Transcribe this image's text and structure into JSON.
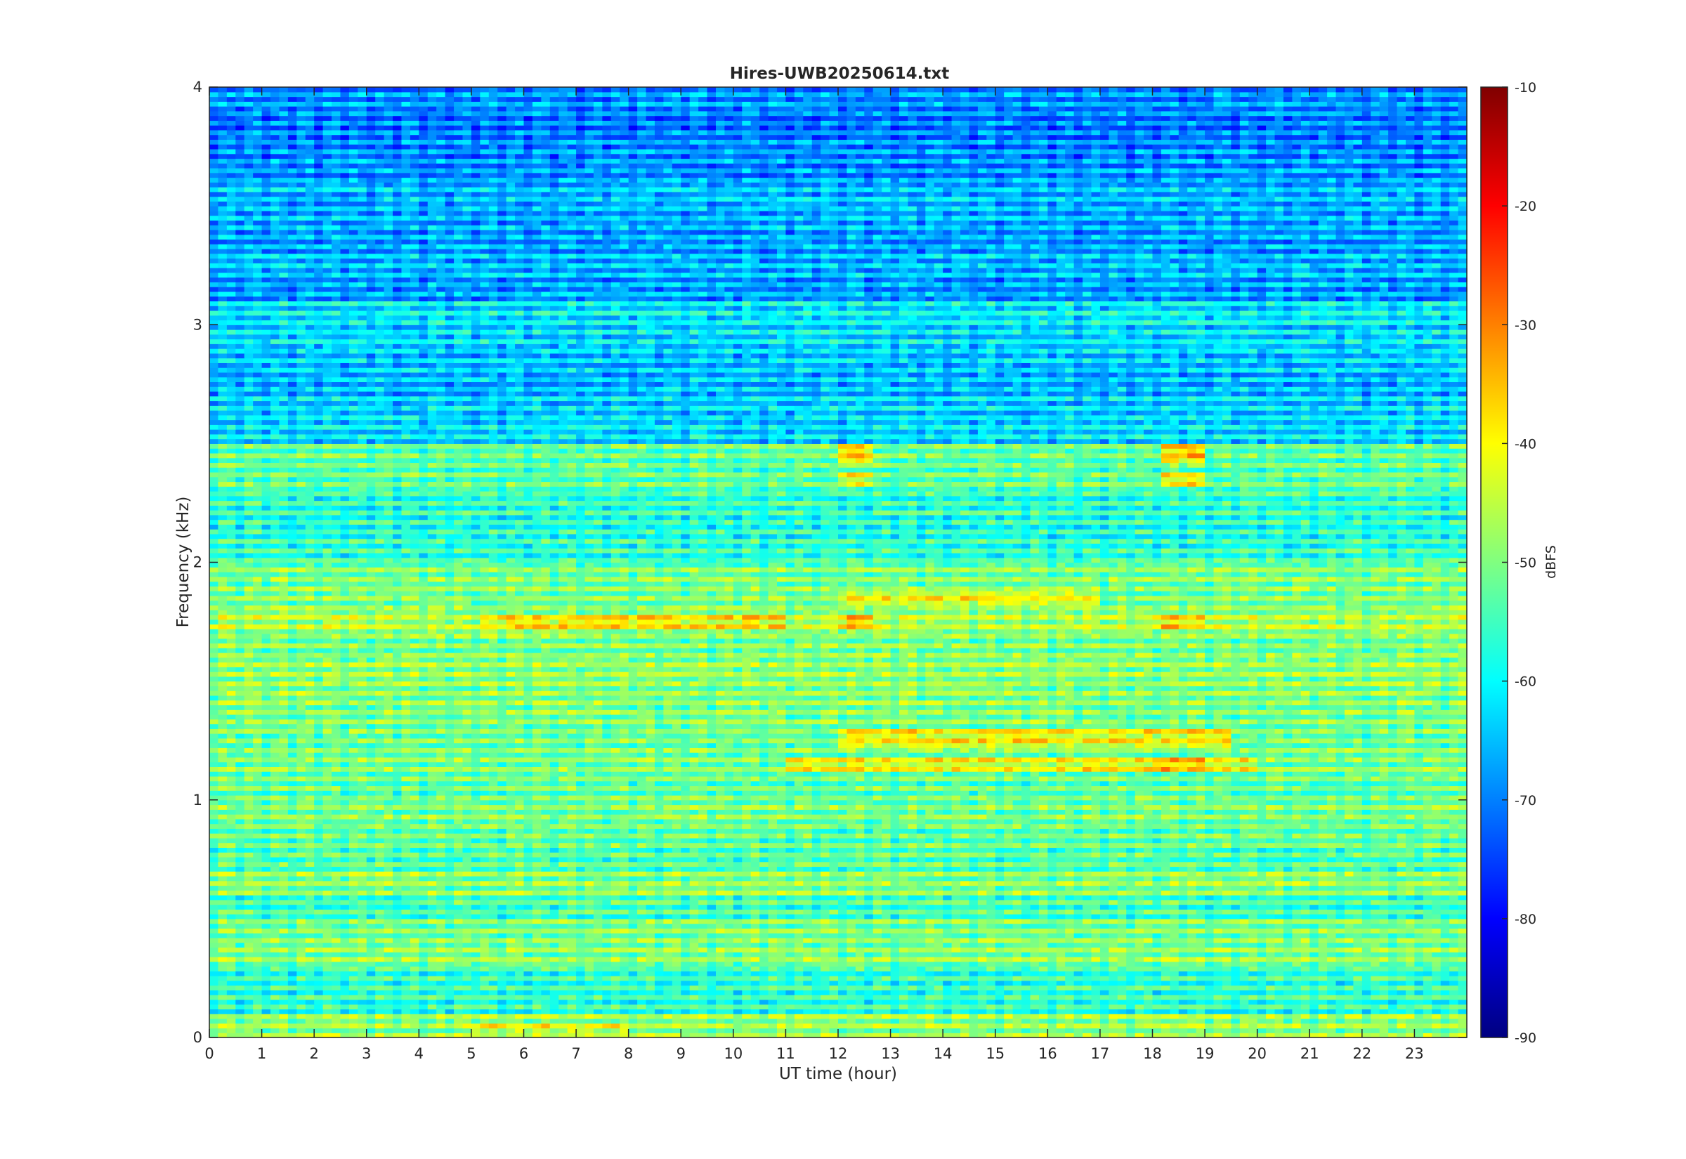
{
  "chart_data": {
    "type": "heatmap",
    "title": "Hires-UWB20250614.txt",
    "xlabel": "UT time (hour)",
    "ylabel": "Frequency (kHz)",
    "colorbar_label": "dBFS",
    "colormap": "jet",
    "xlim": [
      0,
      24
    ],
    "ylim": [
      0,
      4
    ],
    "clim": [
      -90,
      -10
    ],
    "x_ticks": [
      "0",
      "1",
      "2",
      "3",
      "4",
      "5",
      "6",
      "7",
      "8",
      "9",
      "10",
      "11",
      "12",
      "13",
      "14",
      "15",
      "16",
      "17",
      "18",
      "19",
      "20",
      "21",
      "22",
      "23"
    ],
    "y_ticks": [
      "0",
      "1",
      "2",
      "3",
      "4"
    ],
    "colorbar_ticks": [
      "-10",
      "-20",
      "-30",
      "-40",
      "-50",
      "-60",
      "-70",
      "-80",
      "-90"
    ],
    "bands": [
      {
        "freq_khz": 0.04,
        "level_dbfs": -44
      },
      {
        "freq_khz": 0.15,
        "level_dbfs": -52
      },
      {
        "freq_khz": 0.25,
        "level_dbfs": -52
      },
      {
        "freq_khz": 0.35,
        "level_dbfs": -45
      },
      {
        "freq_khz": 0.45,
        "level_dbfs": -46
      },
      {
        "freq_khz": 0.55,
        "level_dbfs": -50
      },
      {
        "freq_khz": 0.65,
        "level_dbfs": -45
      },
      {
        "freq_khz": 0.75,
        "level_dbfs": -49
      },
      {
        "freq_khz": 0.85,
        "level_dbfs": -48
      },
      {
        "freq_khz": 0.95,
        "level_dbfs": -46
      },
      {
        "freq_khz": 1.05,
        "level_dbfs": -48
      },
      {
        "freq_khz": 1.15,
        "level_dbfs": -46
      },
      {
        "freq_khz": 1.25,
        "level_dbfs": -47
      },
      {
        "freq_khz": 1.35,
        "level_dbfs": -46
      },
      {
        "freq_khz": 1.45,
        "level_dbfs": -45
      },
      {
        "freq_khz": 1.55,
        "level_dbfs": -44
      },
      {
        "freq_khz": 1.65,
        "level_dbfs": -46
      },
      {
        "freq_khz": 1.75,
        "level_dbfs": -42
      },
      {
        "freq_khz": 1.85,
        "level_dbfs": -46
      },
      {
        "freq_khz": 1.95,
        "level_dbfs": -46
      },
      {
        "freq_khz": 2.05,
        "level_dbfs": -52
      },
      {
        "freq_khz": 2.15,
        "level_dbfs": -53
      },
      {
        "freq_khz": 2.25,
        "level_dbfs": -52
      },
      {
        "freq_khz": 2.35,
        "level_dbfs": -48
      },
      {
        "freq_khz": 2.45,
        "level_dbfs": -48
      },
      {
        "freq_khz": 2.55,
        "level_dbfs": -58
      },
      {
        "freq_khz": 2.65,
        "level_dbfs": -59
      },
      {
        "freq_khz": 2.75,
        "level_dbfs": -61
      },
      {
        "freq_khz": 2.85,
        "level_dbfs": -60
      },
      {
        "freq_khz": 2.95,
        "level_dbfs": -58
      },
      {
        "freq_khz": 3.05,
        "level_dbfs": -57
      },
      {
        "freq_khz": 3.15,
        "level_dbfs": -63
      },
      {
        "freq_khz": 3.25,
        "level_dbfs": -61
      },
      {
        "freq_khz": 3.35,
        "level_dbfs": -63
      },
      {
        "freq_khz": 3.45,
        "level_dbfs": -62
      },
      {
        "freq_khz": 3.55,
        "level_dbfs": -61
      },
      {
        "freq_khz": 3.65,
        "level_dbfs": -64
      },
      {
        "freq_khz": 3.75,
        "level_dbfs": -65
      },
      {
        "freq_khz": 3.85,
        "level_dbfs": -66
      },
      {
        "freq_khz": 3.95,
        "level_dbfs": -64
      }
    ],
    "hotspots": [
      {
        "x": [
          12.0,
          12.6
        ],
        "y": [
          2.42,
          2.5
        ],
        "level_dbfs": -34
      },
      {
        "x": [
          18.1,
          19.0
        ],
        "y": [
          2.42,
          2.5
        ],
        "level_dbfs": -33
      },
      {
        "x": [
          12.0,
          12.6
        ],
        "y": [
          2.32,
          2.38
        ],
        "level_dbfs": -38
      },
      {
        "x": [
          18.1,
          19.0
        ],
        "y": [
          2.32,
          2.38
        ],
        "level_dbfs": -37
      },
      {
        "x": [
          5.2,
          11.0
        ],
        "y": [
          1.72,
          1.78
        ],
        "level_dbfs": -35
      },
      {
        "x": [
          12.0,
          12.6
        ],
        "y": [
          1.72,
          1.78
        ],
        "level_dbfs": -33
      },
      {
        "x": [
          18.0,
          19.0
        ],
        "y": [
          1.72,
          1.78
        ],
        "level_dbfs": -34
      },
      {
        "x": [
          12.0,
          17.0
        ],
        "y": [
          1.82,
          1.88
        ],
        "level_dbfs": -37
      },
      {
        "x": [
          12.0,
          19.5
        ],
        "y": [
          1.22,
          1.29
        ],
        "level_dbfs": -36
      },
      {
        "x": [
          11.0,
          20.0
        ],
        "y": [
          1.12,
          1.18
        ],
        "level_dbfs": -37
      },
      {
        "x": [
          18.0,
          19.0
        ],
        "y": [
          1.12,
          1.18
        ],
        "level_dbfs": -32
      },
      {
        "x": [
          5.0,
          8.0
        ],
        "y": [
          0.02,
          0.06
        ],
        "level_dbfs": -38
      }
    ]
  }
}
